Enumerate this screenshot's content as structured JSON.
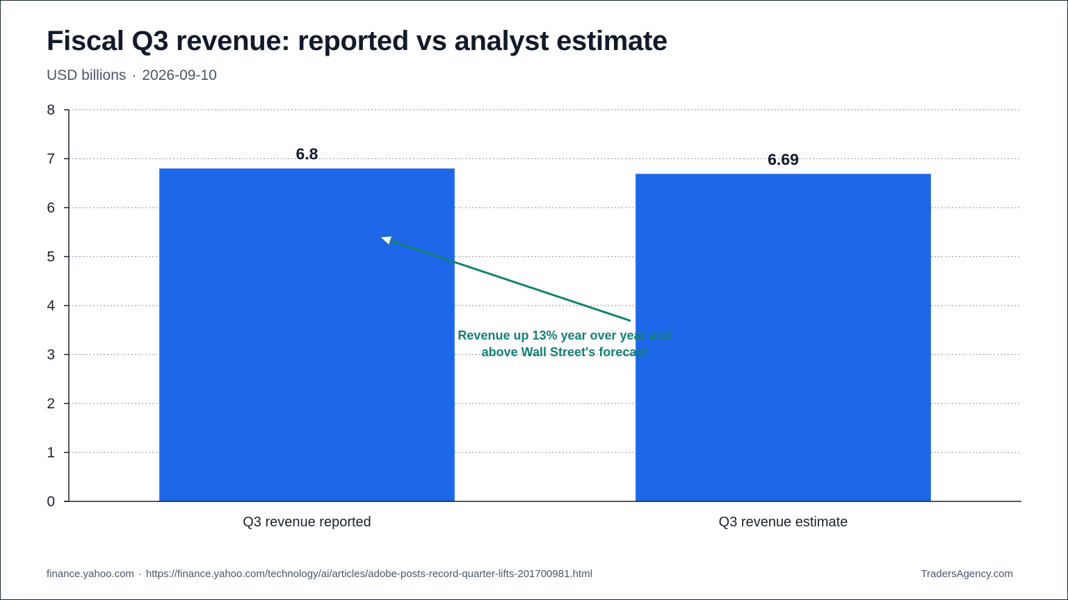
{
  "header": {
    "title": "Fiscal Q3 revenue: reported vs analyst estimate",
    "subtitle_unit": "USD billions",
    "subtitle_separator": "·",
    "subtitle_date": "2026-09-10"
  },
  "colors": {
    "bar": "#1d67e8",
    "annotation": "#138073",
    "axis": "#1a202c",
    "grid": "#9aa3b0"
  },
  "chart_data": {
    "type": "bar",
    "title": "Fiscal Q3 revenue: reported vs analyst estimate",
    "subtitle": "USD billions · 2026-09-10",
    "xlabel": "",
    "ylabel": "",
    "categories": [
      "Q3 revenue reported",
      "Q3 revenue estimate"
    ],
    "values": [
      6.8,
      6.69
    ],
    "value_labels": [
      "6.8",
      "6.69"
    ],
    "ylim": [
      0,
      8
    ],
    "yticks": [
      0,
      1,
      2,
      3,
      4,
      5,
      6,
      7,
      8
    ],
    "grid": true,
    "legend": "none",
    "annotation": {
      "text_line1": "Revenue up 13% year over year and",
      "text_line2": "above Wall Street's forecast",
      "points_to_category": "Q3 revenue reported",
      "points_to_value": 5.4
    }
  },
  "footer": {
    "domain": "finance.yahoo.com",
    "separator": "·",
    "url": "https://finance.yahoo.com/technology/ai/articles/adobe-posts-record-quarter-lifts-201700981.html",
    "brand": "TradersAgency.com"
  }
}
